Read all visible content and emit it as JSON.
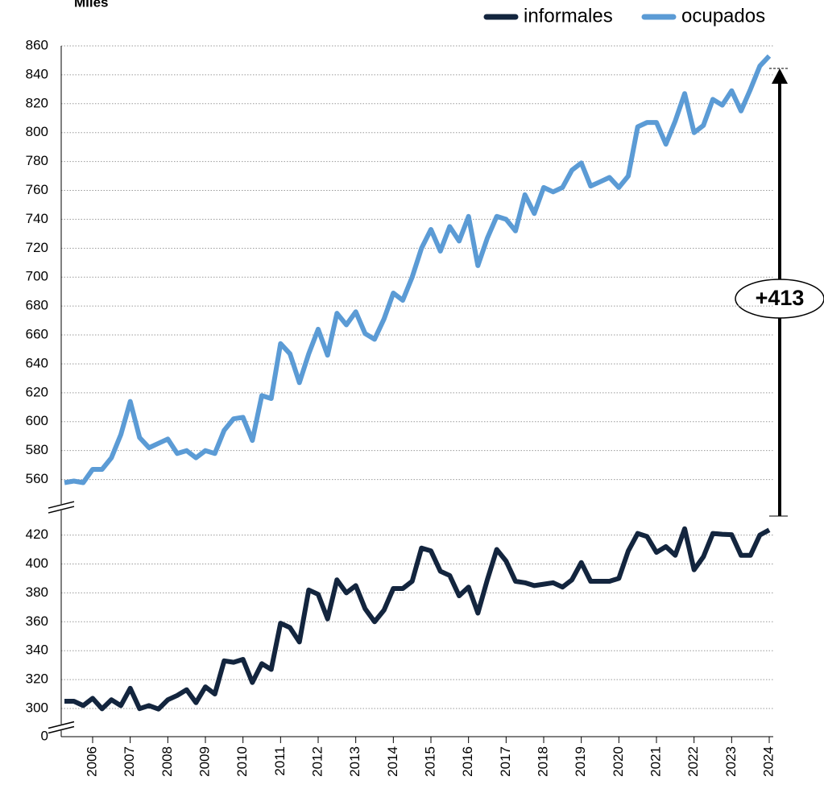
{
  "chart_data": {
    "type": "line",
    "y_label": "Miles",
    "annotation": "+413",
    "categories": [
      null,
      null,
      null,
      "2006",
      null,
      null,
      null,
      "2007",
      null,
      null,
      null,
      "2008",
      null,
      null,
      null,
      "2009",
      null,
      null,
      null,
      "2010",
      null,
      null,
      null,
      "2011",
      null,
      null,
      null,
      "2012",
      null,
      null,
      null,
      "2013",
      null,
      null,
      null,
      "2014",
      null,
      null,
      null,
      "2015",
      null,
      null,
      null,
      "2016",
      null,
      null,
      null,
      "2017",
      null,
      null,
      null,
      "2018",
      null,
      null,
      null,
      "2019",
      null,
      null,
      null,
      "2020",
      null,
      null,
      null,
      "2021",
      null,
      null,
      null,
      "2022",
      null,
      null,
      null,
      "2023",
      null,
      null,
      null,
      "2024"
    ],
    "series": [
      {
        "name": "informales",
        "color": "#13253e",
        "values": [
          305,
          305,
          302,
          307,
          297,
          306,
          302,
          314,
          298,
          302,
          294,
          306,
          309,
          313,
          304,
          315,
          310,
          333,
          332,
          334,
          318,
          331,
          327,
          359,
          356,
          346,
          382,
          379,
          362,
          389,
          380,
          385,
          369,
          360,
          368,
          383,
          383,
          388,
          411,
          409,
          395,
          392,
          378,
          384,
          366,
          389,
          410,
          402,
          388,
          387,
          385,
          386,
          387,
          384,
          389,
          401,
          388,
          388,
          388,
          390,
          409,
          424,
          419,
          408,
          412,
          406,
          436,
          396,
          405,
          424,
          422,
          421,
          406,
          406,
          420,
          433
        ]
      },
      {
        "name": "ocupados",
        "color": "#5b9bd5",
        "values": [
          552,
          556,
          552,
          567,
          567,
          575,
          591,
          614,
          589,
          582,
          585,
          588,
          578,
          580,
          575,
          580,
          578,
          594,
          602,
          603,
          587,
          618,
          616,
          654,
          647,
          627,
          647,
          664,
          646,
          675,
          667,
          676,
          661,
          657,
          671,
          689,
          684,
          700,
          720,
          733,
          718,
          735,
          725,
          742,
          708,
          727,
          742,
          740,
          732,
          757,
          744,
          762,
          759,
          762,
          774,
          779,
          763,
          766,
          769,
          762,
          770,
          804,
          807,
          807,
          792,
          808,
          827,
          800,
          805,
          823,
          819,
          829,
          815,
          830,
          846,
          853
        ]
      }
    ],
    "ylim": [
      0,
      860
    ],
    "y_breaks": [
      [
        0,
        300
      ],
      [
        420,
        560
      ]
    ],
    "yticks": [
      0,
      300,
      320,
      340,
      360,
      380,
      400,
      420,
      560,
      580,
      600,
      620,
      640,
      660,
      680,
      700,
      720,
      740,
      760,
      780,
      800,
      820,
      840,
      860
    ],
    "grid": true,
    "legend": "top-right"
  }
}
